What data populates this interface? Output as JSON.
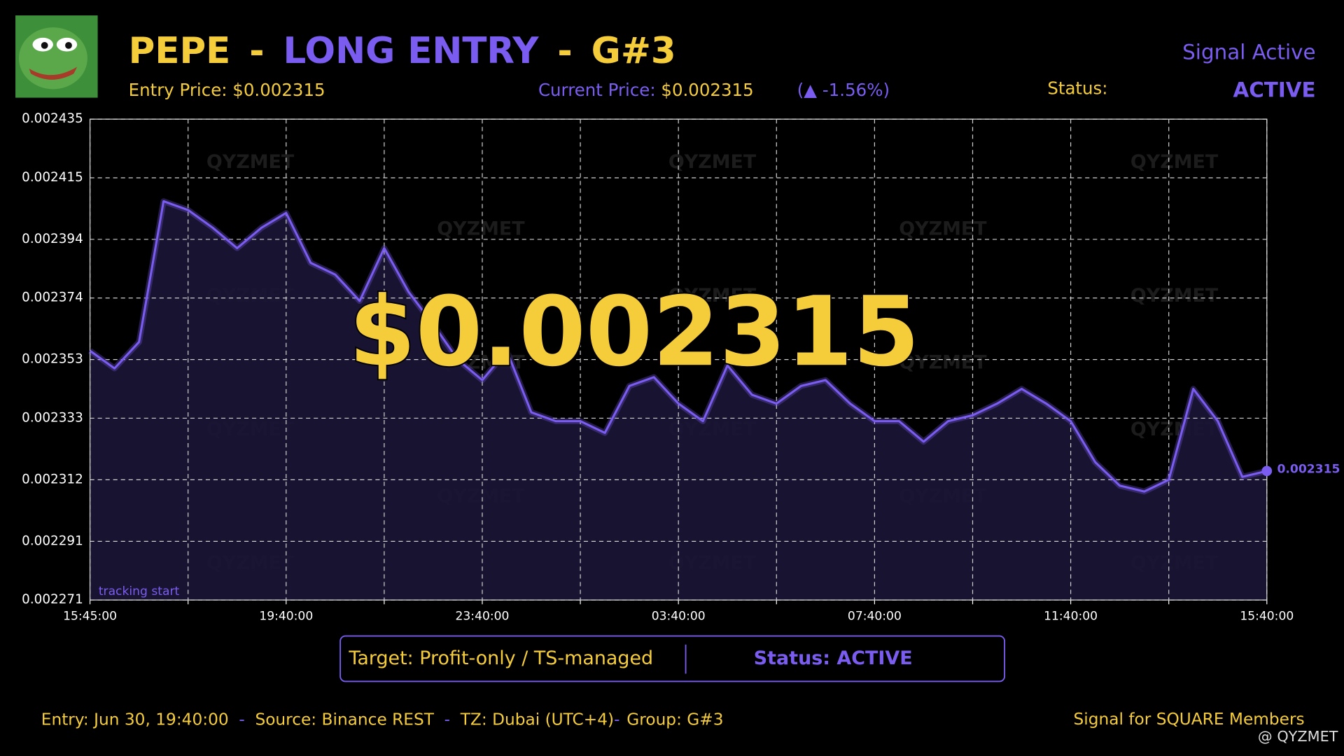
{
  "header": {
    "title_parts": [
      "PEPE",
      "LONG ENTRY",
      "G#3"
    ],
    "title_separator": "-",
    "signal_state": "Signal Active",
    "entry_label": "Entry Price:",
    "entry_value": "$0.002315",
    "current_label": "Current Price:",
    "current_value": "$0.002315",
    "change": "(▲ -1.56%)",
    "status_label": "Status:",
    "status_value": "ACTIVE",
    "big_price": "$0.002315"
  },
  "chart_data": {
    "type": "line",
    "color": "#7b5cf0",
    "area_color": "#1b1535",
    "grid": true,
    "annotation": "tracking start",
    "watermark": "QYZMET",
    "x": [
      0,
      0.5,
      1,
      1.5,
      2,
      2.5,
      3,
      3.5,
      4,
      4.5,
      5,
      5.5,
      6,
      6.5,
      7,
      7.5,
      8,
      8.5,
      9,
      9.5,
      10,
      10.5,
      11,
      11.5,
      12,
      12.5,
      13,
      13.5,
      14,
      14.5,
      15,
      15.5,
      16,
      16.5,
      17,
      17.5,
      18,
      18.5,
      19,
      19.5,
      20,
      20.5,
      21,
      21.5,
      22,
      22.5,
      23,
      23.5,
      24
    ],
    "values": [
      0.002356,
      0.00235,
      0.002359,
      0.002407,
      0.002404,
      0.002398,
      0.002391,
      0.002398,
      0.002403,
      0.002386,
      0.002382,
      0.002373,
      0.002391,
      0.002376,
      0.002365,
      0.002353,
      0.002346,
      0.002356,
      0.002335,
      0.002332,
      0.002332,
      0.002328,
      0.002344,
      0.002347,
      0.002338,
      0.002332,
      0.002351,
      0.002341,
      0.002338,
      0.002344,
      0.002346,
      0.002338,
      0.002332,
      0.002332,
      0.002325,
      0.002332,
      0.002334,
      0.002338,
      0.002343,
      0.002338,
      0.002332,
      0.002318,
      0.00231,
      0.002308,
      0.002312,
      0.002343,
      0.002332,
      0.002313,
      0.002315
    ],
    "xlim": [
      0,
      24
    ],
    "xticks": [
      {
        "value": 0,
        "label": "15:45:00"
      },
      {
        "value": 2,
        "label": null
      },
      {
        "value": 4,
        "label": "19:40:00"
      },
      {
        "value": 6,
        "label": null
      },
      {
        "value": 8,
        "label": "23:40:00"
      },
      {
        "value": 10,
        "label": null
      },
      {
        "value": 12,
        "label": "03:40:00"
      },
      {
        "value": 14,
        "label": null
      },
      {
        "value": 16,
        "label": "07:40:00"
      },
      {
        "value": 18,
        "label": null
      },
      {
        "value": 20,
        "label": "11:40:00"
      },
      {
        "value": 22,
        "label": null
      },
      {
        "value": 24,
        "label": "15:40:00"
      }
    ],
    "ylim": [
      0.002271,
      0.002435
    ],
    "yticks": [
      0.002271,
      0.002291,
      0.002312,
      0.002333,
      0.002353,
      0.002374,
      0.002394,
      0.002415,
      0.002435
    ]
  },
  "target_box": {
    "target": "Target: Profit-only / TS-managed",
    "status": "Status: ACTIVE"
  },
  "footer": {
    "items": [
      "Entry: Jun 30, 19:40:00",
      "Source: Binance REST",
      "TZ: Dubai (UTC+4)",
      "Group: G#3"
    ],
    "separator": "-",
    "right": "Signal for SQUARE Members",
    "handle": "@ QYZMET"
  }
}
